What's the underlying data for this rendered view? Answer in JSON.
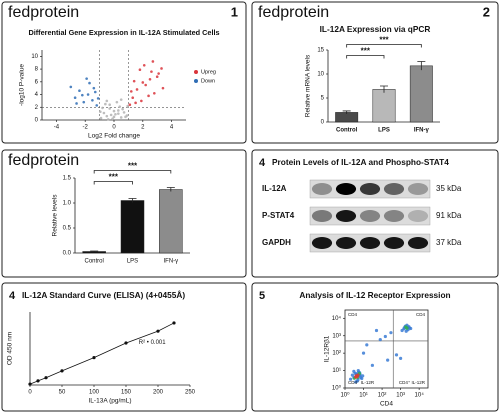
{
  "chart_data": [
    {
      "type": "scatter",
      "panel_label": "fedprotein",
      "panel_number": "1",
      "title": "Differential Gene Expression in IL-12A Stimulated Cells",
      "x_label": "Log2 Fold change",
      "y_label": "-log10 P-value",
      "xlim": [
        -5,
        5
      ],
      "xticks": [
        -4,
        -2,
        0,
        2,
        4
      ],
      "ylim": [
        0,
        11
      ],
      "yticks": [
        0,
        2,
        4,
        6,
        8,
        10
      ],
      "vlines": [
        -1,
        1
      ],
      "hlines": [
        2
      ],
      "series": [
        {
          "color": "#b3b3b3",
          "x": [
            -0.9,
            -0.7,
            -0.5,
            -0.3,
            -0.1,
            0.1,
            0.3,
            0.5,
            0.7,
            0.9,
            -0.8,
            -0.4,
            0,
            0.4,
            0.8,
            -0.6,
            -0.2,
            0.2,
            0.6,
            -0.95,
            0.95,
            -0.5,
            0.5,
            0,
            -0.3,
            0.3
          ],
          "values": [
            0.3,
            1.1,
            0.6,
            1.8,
            0.2,
            0.9,
            1.5,
            0.4,
            1.2,
            0.7,
            1.9,
            0.1,
            1.4,
            2.1,
            0.5,
            2.5,
            0.8,
            2.8,
            1.7,
            1.3,
            2.2,
            3.0,
            3.2,
            0.5,
            2.4,
            1.0
          ]
        },
        {
          "name": "Upreg",
          "color": "#d9343b",
          "x": [
            1.1,
            1.3,
            1.6,
            1.9,
            2.2,
            2.5,
            2.8,
            3.1,
            3.4,
            1.4,
            1.8,
            2.1,
            2.4,
            2.7,
            3.0,
            1.2,
            1.5,
            2.0,
            2.6,
            3.3
          ],
          "values": [
            2.4,
            3.5,
            4.8,
            3.0,
            5.5,
            6.4,
            4.2,
            7.3,
            5.0,
            6.1,
            7.9,
            8.6,
            3.8,
            9.2,
            6.8,
            4.5,
            2.7,
            5.9,
            7.6,
            8.1
          ]
        },
        {
          "name": "Down",
          "color": "#2f6db5",
          "x": [
            -1.2,
            -1.5,
            -1.8,
            -2.1,
            -2.4,
            -2.7,
            -3.0,
            -1.3,
            -1.7,
            -2.2,
            -1.1,
            -2.6,
            -1.9,
            -1.4
          ],
          "values": [
            2.3,
            3.1,
            4.0,
            2.8,
            4.6,
            3.5,
            5.2,
            4.4,
            5.8,
            3.9,
            3.4,
            2.6,
            6.5,
            5.0
          ]
        }
      ]
    },
    {
      "type": "bar",
      "panel_label": "fedprotein",
      "panel_number": "2",
      "title": "IL-12A Expression via qPCR",
      "y_label": "Relative mRNA levels",
      "categories": [
        "Control",
        "LPS",
        "IFN-γ"
      ],
      "values": [
        2,
        6.8,
        11.7
      ],
      "errors": [
        0.3,
        0.7,
        0.9
      ],
      "colors": [
        "#4a4a4a",
        "#b8b8b8",
        "#8c8c8c"
      ],
      "ylim": [
        0,
        15
      ],
      "yticks": [
        0,
        5,
        10,
        15
      ],
      "annotations": [
        {
          "text": "***",
          "between": [
            "Control",
            "LPS"
          ]
        },
        {
          "text": "***",
          "between": [
            "Control",
            "IFN-γ"
          ]
        }
      ]
    },
    {
      "type": "bar",
      "panel_label": "fedprotein",
      "y_label": "Relative levels",
      "categories": [
        "Control",
        "LPS",
        "IFN-γ"
      ],
      "values": [
        0.03,
        1.05,
        1.27
      ],
      "errors": [
        0.01,
        0.04,
        0.04
      ],
      "colors": [
        "#111111",
        "#111111",
        "#8c8c8c"
      ],
      "ylim": [
        0,
        1.5
      ],
      "yticks": [
        {
          "value": 0,
          "label": "0.0"
        },
        {
          "value": 0.5,
          "label": "0.5"
        },
        {
          "value": 1,
          "label": "1.0"
        },
        {
          "value": 1.5,
          "label": "1.5"
        }
      ],
      "annotations": [
        {
          "text": "***",
          "between": [
            "Control",
            "LPS"
          ]
        },
        {
          "text": "***",
          "between": [
            "Control",
            "IFN-γ"
          ]
        }
      ]
    },
    {
      "type": "blot",
      "panel_number": "4",
      "title": "Protein Levels of IL-12A and Phospho-STAT4",
      "rows": [
        {
          "name": "IL-12A",
          "size": "35 kDa",
          "values": [
            0.35,
            1,
            0.75,
            0.55,
            0.3
          ]
        },
        {
          "name": "P-STAT4",
          "size": "91 kDa",
          "values": [
            0.45,
            0.9,
            0.4,
            0.4,
            0.2
          ]
        },
        {
          "name": "GAPDH",
          "size": "37 kDa",
          "values": [
            0.9,
            0.9,
            0.9,
            0.9,
            0.9
          ]
        }
      ]
    },
    {
      "type": "line",
      "panel_number": "4",
      "title": "IL-12A Standard Curve (ELISA) (4+0455Å)",
      "x_label": "IL-13A (pg/mL)",
      "y_label": "OD 450 nm",
      "annotation": "R² • 0.001",
      "color": "#111111",
      "xlim": [
        0,
        250
      ],
      "xticks": [
        0,
        50,
        100,
        150,
        200,
        250
      ],
      "ylim": [
        0,
        0.8
      ],
      "x": [
        0,
        12.5,
        25,
        50,
        100,
        150,
        200,
        225
      ],
      "values": [
        0.01,
        0.045,
        0.08,
        0.155,
        0.3,
        0.46,
        0.59,
        0.68
      ]
    },
    {
      "type": "scatter",
      "panel_number": "5",
      "title": "Analysis of IL-12 Receptor Expression",
      "x_label": "CD4",
      "y_label": "IL-12Rβ1",
      "log_x": true,
      "log_y": true,
      "xlim": [
        1,
        30000
      ],
      "ylim": [
        1,
        30000
      ],
      "xticks": [
        {
          "value": 1,
          "label": "10⁰"
        },
        {
          "value": 10,
          "label": "10¹"
        },
        {
          "value": 100,
          "label": "10²"
        },
        {
          "value": 1000,
          "label": "10³"
        },
        {
          "value": 10000,
          "label": "10⁴"
        }
      ],
      "yticks": [
        {
          "value": 1,
          "label": "10⁰"
        },
        {
          "value": 10,
          "label": "10¹"
        },
        {
          "value": 100,
          "label": "10²"
        },
        {
          "value": 1000,
          "label": "10³"
        },
        {
          "value": 10000,
          "label": "10⁴"
        }
      ],
      "vlines": [
        400
      ],
      "hlines": [
        500
      ],
      "quadrant_labels": [
        "CD4",
        "CD4",
        "CD4⁻ IL-12R",
        "CD4⁺ IL-12R"
      ],
      "series": [
        {
          "color": "#3a7bd5",
          "x": [
            3,
            5,
            4,
            6,
            2.5,
            7,
            4.5,
            3.5,
            5.5,
            8,
            3,
            6.5,
            4,
            5,
            2,
            9,
            3.8,
            5.2,
            4.2,
            6.2,
            1500,
            2000,
            2500,
            1800,
            3000,
            1200,
            2200,
            2800,
            1600,
            3500,
            2000,
            2400,
            30,
            80,
            200,
            15,
            600,
            50,
            1000,
            300,
            10,
            150
          ],
          "values": [
            4,
            3,
            6,
            5,
            5.5,
            4,
            2.5,
            7,
            8,
            3.5,
            9,
            6,
            4.8,
            5.2,
            3.2,
            5,
            2.2,
            10,
            6.5,
            7.5,
            2500,
            3000,
            2200,
            3500,
            2800,
            2000,
            4000,
            3300,
            2900,
            2600,
            1800,
            3100,
            20,
            600,
            40,
            300,
            80,
            2000,
            50,
            1500,
            100,
            900
          ]
        },
        {
          "color": "#2fb34a",
          "x": [
            3.2,
            6,
            4.8,
            2200,
            1900
          ],
          "values": [
            3.6,
            6.8,
            4,
            2700,
            3200
          ]
        },
        {
          "color": "#e0392f",
          "x": [
            4,
            4.5,
            5,
            3.8
          ],
          "values": [
            5,
            4.5,
            5.5,
            4.2
          ]
        }
      ]
    }
  ]
}
